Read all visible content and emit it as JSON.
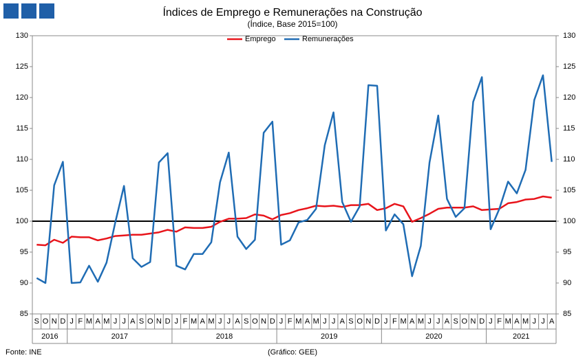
{
  "chart_data": {
    "type": "line",
    "title": "Índices de Emprego e Remunerações na Construção",
    "subtitle": "(Índice, Base 2015=100)",
    "source": "Fonte: INE",
    "credit": "(Gráfico: GEE)",
    "year_groups": [
      {
        "label": "2016",
        "months": [
          "S",
          "O",
          "N",
          "D"
        ]
      },
      {
        "label": "2017",
        "months": [
          "J",
          "F",
          "M",
          "A",
          "M",
          "J",
          "J",
          "A",
          "S",
          "O",
          "N",
          "D"
        ]
      },
      {
        "label": "2018",
        "months": [
          "J",
          "F",
          "M",
          "A",
          "M",
          "J",
          "J",
          "A",
          "S",
          "O",
          "N",
          "D"
        ]
      },
      {
        "label": "2019",
        "months": [
          "J",
          "F",
          "M",
          "A",
          "M",
          "J",
          "J",
          "A",
          "S",
          "O",
          "N",
          "D"
        ]
      },
      {
        "label": "2020",
        "months": [
          "J",
          "F",
          "M",
          "A",
          "M",
          "J",
          "J",
          "A",
          "S",
          "O",
          "N",
          "D"
        ]
      },
      {
        "label": "2021",
        "months": [
          "J",
          "F",
          "M",
          "A",
          "M",
          "J",
          "J",
          "A"
        ]
      }
    ],
    "series": [
      {
        "name": "Emprego",
        "color": "#e8141b",
        "values": [
          96.2,
          96.1,
          97.0,
          96.5,
          97.5,
          97.4,
          97.4,
          96.9,
          97.2,
          97.6,
          97.7,
          97.8,
          97.8,
          98.0,
          98.2,
          98.6,
          98.3,
          99.0,
          98.9,
          98.9,
          99.1,
          99.9,
          100.4,
          100.4,
          100.5,
          101.1,
          100.9,
          100.3,
          101.0,
          101.3,
          101.8,
          102.1,
          102.5,
          102.4,
          102.5,
          102.3,
          102.6,
          102.6,
          102.8,
          101.8,
          102.1,
          102.8,
          102.4,
          99.9,
          100.5,
          101.2,
          102.0,
          102.2,
          102.2,
          102.2,
          102.4,
          101.8,
          101.9,
          102.0,
          102.9,
          103.1,
          103.5,
          103.6,
          104.0,
          103.8
        ]
      },
      {
        "name": "Remunerações",
        "color": "#1f6cb4",
        "values": [
          90.8,
          90.0,
          105.8,
          109.6,
          90.0,
          90.1,
          92.8,
          90.2,
          93.3,
          99.8,
          105.7,
          94.0,
          92.6,
          93.4,
          109.5,
          111.0,
          92.8,
          92.2,
          94.7,
          94.7,
          96.6,
          106.3,
          111.1,
          97.5,
          95.5,
          97.0,
          114.3,
          116.1,
          96.2,
          96.9,
          99.8,
          100.2,
          102.0,
          112.3,
          117.6,
          103.1,
          99.9,
          102.4,
          122.0,
          121.9,
          98.5,
          101.1,
          99.5,
          91.1,
          96.0,
          109.5,
          117.1,
          103.6,
          100.7,
          102.1,
          119.3,
          123.3,
          98.7,
          102.0,
          106.4,
          104.5,
          108.3,
          119.6,
          123.6,
          109.6
        ]
      }
    ],
    "reference_line": 100,
    "ylim": [
      85,
      130
    ],
    "yticks": [
      85,
      90,
      95,
      100,
      105,
      110,
      115,
      120,
      125,
      130
    ],
    "y2lim": [
      85,
      130
    ],
    "y2ticks": [
      85,
      90,
      95,
      100,
      105,
      110,
      115,
      120,
      125,
      130
    ],
    "legend": "top"
  }
}
